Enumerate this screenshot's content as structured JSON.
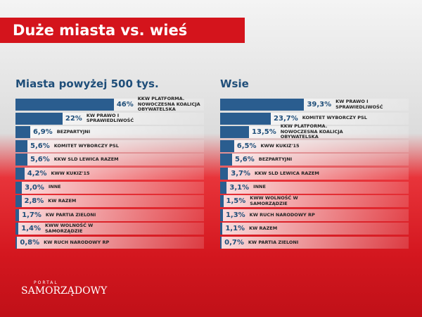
{
  "title": "Duże miasta vs. wieś",
  "logo": {
    "top": "PORTAL",
    "main": "SAMORZĄDOWY"
  },
  "chart_data": [
    {
      "type": "bar",
      "orientation": "horizontal",
      "title": "Miasta powyżej 500 tys.",
      "color": "#2a5d8f",
      "categories": [
        "KKW PLATFORMA. NOWOCZESNA KOALICJA OBYWATELSKA",
        "KW PRAWO I SPRAWIEDLIWOŚĆ",
        "BEZPARTYJNI",
        "KOMITET WYBORCZY PSL",
        "KKW SLD LEWICA RAZEM",
        "KWW KUKIZ'15",
        "INNE",
        "KW RAZEM",
        "KW PARTIA ZIELONI",
        "KWW WOLNOŚĆ W SAMORZĄDZIE",
        "KW RUCH NARODOWY RP"
      ],
      "values": [
        46,
        22,
        6.9,
        5.6,
        5.6,
        4.2,
        3.0,
        2.8,
        1.7,
        1.4,
        0.8
      ],
      "value_labels": [
        "46%",
        "22%",
        "6,9%",
        "5,6%",
        "5,6%",
        "4,2%",
        "3,0%",
        "2,8%",
        "1,7%",
        "1,4%",
        "0,8%"
      ]
    },
    {
      "type": "bar",
      "orientation": "horizontal",
      "title": "Wsie",
      "color": "#2a5d8f",
      "categories": [
        "KW PRAWO I SPRAWIEDLIWOŚĆ",
        "KOMITET WYBORCZY PSL",
        "KKW PLATFORMA. NOWOCZESNA KOALICJA OBYWATELSKA",
        "KWW KUKIZ'15",
        "BEZPARTYJNI",
        "KKW SLD LEWICA RAZEM",
        "INNE",
        "KWW WOLNOŚĆ W SAMORZĄDZIE",
        "KW RUCH NARODOWY RP",
        "KW RAZEM",
        "KW PARTIA ZIELONI"
      ],
      "values": [
        39.3,
        23.7,
        13.5,
        6.5,
        5.6,
        3.7,
        3.1,
        1.5,
        1.3,
        1.1,
        0.7
      ],
      "value_labels": [
        "39,3%",
        "23,7%",
        "13,5%",
        "6,5%",
        "5,6%",
        "3,7%",
        "3,1%",
        "1,5%",
        "1,3%",
        "1,1%",
        "0,7%"
      ]
    }
  ]
}
